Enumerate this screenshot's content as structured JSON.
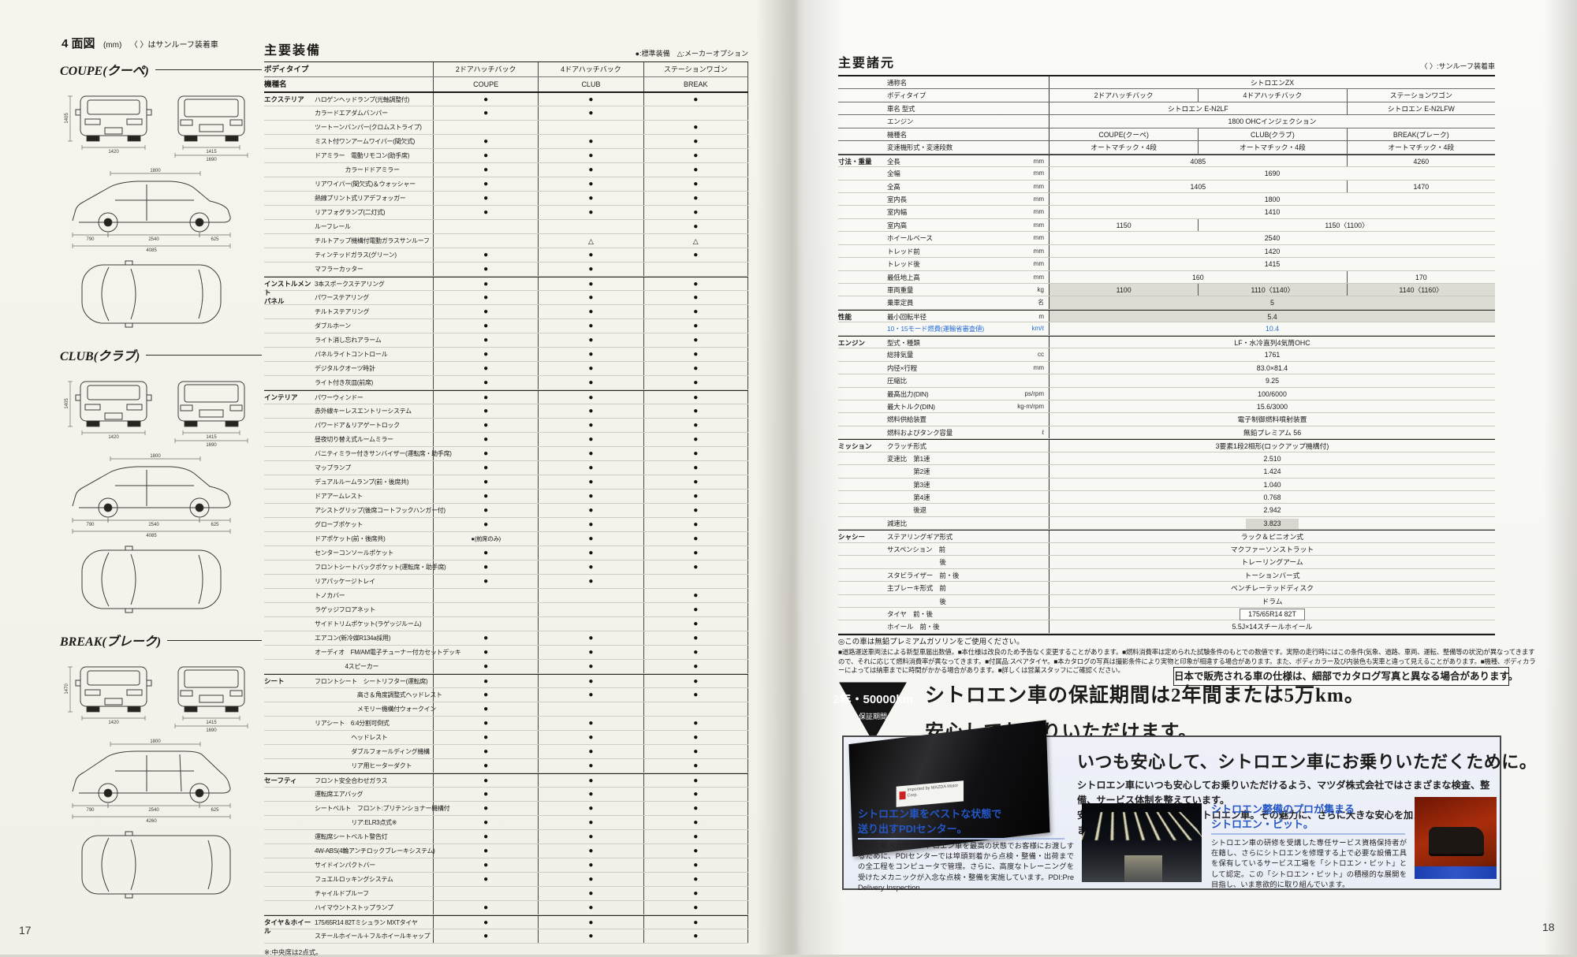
{
  "scan": {
    "page_number_left": "17",
    "page_number_right": "18"
  },
  "page_left": {
    "header": {
      "title": "4 面図",
      "unit_note": "(mm)",
      "sunroof_note": "〈 〉はサンルーフ装着車"
    },
    "diagrams": [
      {
        "name": "COUPE(クーペ)",
        "type": "hatch",
        "dims": {
          "height": "1405",
          "track_f": "1420",
          "track_r": "1415",
          "width": "1690",
          "cabin": "1800",
          "front_oh": "790",
          "wheelbase": "2540",
          "rear_oh": "625",
          "length": "4085"
        }
      },
      {
        "name": "CLUB(クラブ)",
        "type": "hatch",
        "dims": {
          "height": "1405",
          "track_f": "1420",
          "track_r": "1415",
          "width": "1690",
          "cabin": "1800",
          "front_oh": "790",
          "wheelbase": "2540",
          "rear_oh": "625",
          "length": "4085"
        }
      },
      {
        "name": "BREAK(ブレーク)",
        "type": "wagon",
        "dims": {
          "height": "1470",
          "track_f": "1420",
          "track_r": "1415",
          "width": "1690",
          "cabin": "1800",
          "front_oh": "790",
          "wheelbase": "2540",
          "rear_oh": "625",
          "length": "4260"
        }
      }
    ],
    "equipment": {
      "title": "主要装備",
      "legend": "●:標準装備　△:メーカーオプション",
      "body_type_label": "ボディタイプ",
      "model_label": "機種名",
      "body_types": [
        "2ドアハッチバック",
        "4ドアハッチバック",
        "ステーションワゴン"
      ],
      "models": [
        "COUPE",
        "CLUB",
        "BREAK"
      ],
      "rows": [
        {
          "g": true,
          "c": "エクステリア",
          "i": "ハロゲンヘッドランプ(光軸調整付)",
          "v": [
            "●",
            "●",
            "●"
          ]
        },
        {
          "i": "カラードエアダムバンパー",
          "v": [
            "●",
            "●",
            ""
          ]
        },
        {
          "i": "ツートーンバンパー(クロムストライプ)",
          "v": [
            "",
            "",
            "●"
          ]
        },
        {
          "i": "ミスト付ワンアームワイパー(間欠式)",
          "v": [
            "●",
            "●",
            "●"
          ]
        },
        {
          "i": "ドアミラー　電動リモコン(助手席)",
          "v": [
            "●",
            "●",
            "●"
          ]
        },
        {
          "i": "　　　　　カラードドアミラー",
          "v": [
            "●",
            "●",
            "●"
          ]
        },
        {
          "i": "リアワイパー(間欠式)＆ウォッシャー",
          "v": [
            "●",
            "●",
            "●"
          ]
        },
        {
          "i": "熱線プリント式リアデフォッガー",
          "v": [
            "●",
            "●",
            "●"
          ]
        },
        {
          "i": "リアフォグランプ(二灯式)",
          "v": [
            "●",
            "●",
            "●"
          ]
        },
        {
          "i": "ルーフレール",
          "v": [
            "",
            "",
            "●"
          ]
        },
        {
          "i": "チルトアップ機構付電動ガラスサンルーフ",
          "v": [
            "",
            "△",
            "△"
          ]
        },
        {
          "i": "ティンテッドガラス(グリーン)",
          "v": [
            "●",
            "●",
            "●"
          ]
        },
        {
          "i": "マフラーカッター",
          "v": [
            "●",
            "●",
            ""
          ]
        },
        {
          "g": true,
          "c": "インストルメント\nパネル",
          "i": "3本スポークステアリング",
          "v": [
            "●",
            "●",
            "●"
          ]
        },
        {
          "i": "パワーステアリング",
          "v": [
            "●",
            "●",
            "●"
          ]
        },
        {
          "i": "チルトステアリング",
          "v": [
            "●",
            "●",
            "●"
          ]
        },
        {
          "i": "ダブルホーン",
          "v": [
            "●",
            "●",
            "●"
          ]
        },
        {
          "i": "ライト消し忘れアラーム",
          "v": [
            "●",
            "●",
            "●"
          ]
        },
        {
          "i": "パネルライトコントロール",
          "v": [
            "●",
            "●",
            "●"
          ]
        },
        {
          "i": "デジタルクオーツ時計",
          "v": [
            "●",
            "●",
            "●"
          ]
        },
        {
          "i": "ライト付き灰皿(前席)",
          "v": [
            "●",
            "●",
            "●"
          ]
        },
        {
          "g": true,
          "c": "インテリア",
          "i": "パワーウィンドー",
          "v": [
            "●",
            "●",
            "●"
          ]
        },
        {
          "i": "赤外線キーレスエントリーシステム",
          "v": [
            "●",
            "●",
            "●"
          ]
        },
        {
          "i": "パワードア＆リアゲートロック",
          "v": [
            "●",
            "●",
            "●"
          ]
        },
        {
          "i": "昼夜切り替え式ルームミラー",
          "v": [
            "●",
            "●",
            "●"
          ]
        },
        {
          "i": "バニティミラー付きサンバイザー(運転席・助手席)",
          "v": [
            "●",
            "●",
            "●"
          ]
        },
        {
          "i": "マップランプ",
          "v": [
            "●",
            "●",
            "●"
          ]
        },
        {
          "i": "デュアルルームランプ(前・後席共)",
          "v": [
            "●",
            "●",
            "●"
          ]
        },
        {
          "i": "ドアアームレスト",
          "v": [
            "●",
            "●",
            "●"
          ]
        },
        {
          "i": "アシストグリップ(後席コートフックハンガー付)",
          "v": [
            "●",
            "●",
            "●"
          ]
        },
        {
          "i": "グローブポケット",
          "v": [
            "●",
            "●",
            "●"
          ]
        },
        {
          "i": "ドアポケット(前・後席共)",
          "v": [
            "●(前席のみ)",
            "●",
            "●"
          ]
        },
        {
          "i": "センターコンソールポケット",
          "v": [
            "●",
            "●",
            "●"
          ]
        },
        {
          "i": "フロントシートバックポケット(運転席・助手席)",
          "v": [
            "●",
            "●",
            "●"
          ]
        },
        {
          "i": "リアパッケージトレイ",
          "v": [
            "●",
            "●",
            ""
          ]
        },
        {
          "i": "トノカバー",
          "v": [
            "",
            "",
            "●"
          ]
        },
        {
          "i": "ラゲッジフロアネット",
          "v": [
            "",
            "",
            "●"
          ]
        },
        {
          "i": "サイドトリムポケット(ラゲッジルーム)",
          "v": [
            "",
            "",
            "●"
          ]
        },
        {
          "i": "エアコン(新冷媒R134a採用)",
          "v": [
            "●",
            "●",
            "●"
          ]
        },
        {
          "i": "オーディオ　FM/AM電子チューナー付カセットデッキ",
          "v": [
            "●",
            "●",
            "●"
          ]
        },
        {
          "i": "　　　　　4スピーカー",
          "v": [
            "●",
            "●",
            "●"
          ]
        },
        {
          "g": true,
          "c": "シート",
          "i": "フロントシート　シートリフター(運転席)",
          "v": [
            "●",
            "●",
            "●"
          ]
        },
        {
          "i": "　　　　　　　高さ＆角度調整式ヘッドレスト",
          "v": [
            "●",
            "●",
            "●"
          ]
        },
        {
          "i": "　　　　　　　メモリー機構付ウォークイン",
          "v": [
            "●",
            "",
            ""
          ]
        },
        {
          "i": "リアシート　6:4分割可倒式",
          "v": [
            "●",
            "●",
            "●"
          ]
        },
        {
          "i": "　　　　　　ヘッドレスト",
          "v": [
            "●",
            "●",
            "●"
          ]
        },
        {
          "i": "　　　　　　ダブルフォールディング機構",
          "v": [
            "●",
            "●",
            "●"
          ]
        },
        {
          "i": "　　　　　　リア用ヒーターダクト",
          "v": [
            "●",
            "●",
            "●"
          ]
        },
        {
          "g": true,
          "c": "セーフティ",
          "i": "フロント安全合わせガラス",
          "v": [
            "●",
            "●",
            "●"
          ]
        },
        {
          "i": "運転席エアバッグ",
          "v": [
            "●",
            "●",
            "●"
          ]
        },
        {
          "i": "シートベルト　フロント:プリテンショナー機構付",
          "v": [
            "●",
            "●",
            "●"
          ]
        },
        {
          "i": "　　　　　　リア:ELR3点式※",
          "v": [
            "●",
            "●",
            "●"
          ]
        },
        {
          "i": "運転席シートベルト警告灯",
          "v": [
            "●",
            "●",
            "●"
          ]
        },
        {
          "i": "4W-ABS(4輪アンチロックブレーキシステム)",
          "v": [
            "●",
            "●",
            "●"
          ]
        },
        {
          "i": "サイドインパクトバー",
          "v": [
            "●",
            "●",
            "●"
          ]
        },
        {
          "i": "フュエルロッキングシステム",
          "v": [
            "●",
            "●",
            "●"
          ]
        },
        {
          "i": "チャイルドプルーフ",
          "v": [
            "",
            "●",
            "●"
          ]
        },
        {
          "i": "ハイマウントストップランプ",
          "v": [
            "●",
            "●",
            "●"
          ]
        },
        {
          "g": true,
          "c": "タイヤ＆ホイール",
          "i": "175/65R14 82Tミシュラン MXTタイヤ",
          "v": [
            "●",
            "●",
            "●"
          ]
        },
        {
          "i": "スチールホイール＋フルホイールキャップ",
          "v": [
            "●",
            "●",
            "●"
          ]
        }
      ],
      "footnote": "※:中央席は2点式。"
    }
  },
  "page_right": {
    "spec": {
      "title": "主要諸元",
      "legend": "〈 〉:サンルーフ装着車",
      "rows": [
        {
          "hd": true,
          "l": "通称名",
          "s": "a",
          "v": [
            "シトロエンZX"
          ]
        },
        {
          "hd": true,
          "l": "ボディタイプ",
          "s": "t",
          "v": [
            "2ドアハッチバック",
            "4ドアハッチバック",
            "ステーションワゴン"
          ]
        },
        {
          "hd": true,
          "l": "車名 型式",
          "s": "to",
          "v": [
            "シトロエン E-N2LF",
            "シトロエン E-N2LFW"
          ]
        },
        {
          "hd": true,
          "l": "エンジン",
          "s": "a",
          "v": [
            "1800 OHCインジェクション"
          ]
        },
        {
          "hd": true,
          "l": "機種名",
          "s": "t",
          "v": [
            "COUPE(クーペ)",
            "CLUB(クラブ)",
            "BREAK(ブレーク)"
          ]
        },
        {
          "hd": true,
          "l": "変速機形式・変速段数",
          "s": "t",
          "v": [
            "オートマチック・4段",
            "オートマチック・4段",
            "オートマチック・4段"
          ]
        },
        {
          "g": true,
          "c": "寸法・重量",
          "l": "全長",
          "u": "mm",
          "s": "to",
          "v": [
            "4085",
            "4260"
          ]
        },
        {
          "l": "全幅",
          "u": "mm",
          "s": "a",
          "v": [
            "1690"
          ]
        },
        {
          "l": "全高",
          "u": "mm",
          "s": "to",
          "v": [
            "1405",
            "1470"
          ]
        },
        {
          "l": "室内長",
          "u": "mm",
          "s": "a",
          "v": [
            "1800"
          ]
        },
        {
          "l": "室内幅",
          "u": "mm",
          "s": "a",
          "v": [
            "1410"
          ]
        },
        {
          "l": "室内高",
          "u": "mm",
          "s": "ot",
          "v": [
            "1150",
            "1150〈1100〉"
          ]
        },
        {
          "l": "ホイールベース",
          "u": "mm",
          "s": "a",
          "v": [
            "2540"
          ]
        },
        {
          "l": "トレッド前",
          "u": "mm",
          "s": "a",
          "v": [
            "1420"
          ]
        },
        {
          "l": "トレッド後",
          "u": "mm",
          "s": "a",
          "v": [
            "1415"
          ]
        },
        {
          "l": "最低地上高",
          "u": "mm",
          "s": "to",
          "v": [
            "160",
            "170"
          ]
        },
        {
          "l": "車両重量",
          "u": "kg",
          "s": "t",
          "v": [
            "1100",
            "1110〈1140〉",
            "1140〈1160〉"
          ],
          "hl": true
        },
        {
          "l": "乗車定員",
          "u": "名",
          "s": "a",
          "v": [
            "5"
          ],
          "hl": true
        },
        {
          "g": true,
          "c": "性能",
          "l": "最小回転半径",
          "u": "m",
          "s": "a",
          "v": [
            "5.4"
          ],
          "hl": true
        },
        {
          "l": "10・15モード燃費(運輸省審査値)",
          "u": "km/ℓ",
          "s": "a",
          "v": [
            "10.4"
          ],
          "blue": true
        },
        {
          "g": true,
          "c": "エンジン",
          "l": "型式・種類",
          "s": "a",
          "v": [
            "LF・水冷直列4気筒OHC"
          ]
        },
        {
          "l": "総排気量",
          "u": "cc",
          "s": "a",
          "v": [
            "1761"
          ]
        },
        {
          "l": "内径×行程",
          "u": "mm",
          "s": "a",
          "v": [
            "83.0×81.4"
          ]
        },
        {
          "l": "圧縮比",
          "s": "a",
          "v": [
            "9.25"
          ]
        },
        {
          "l": "最高出力(DIN)",
          "u": "ps/rpm",
          "s": "a",
          "v": [
            "100/6000"
          ]
        },
        {
          "l": "最大トルク(DIN)",
          "u": "kg-m/rpm",
          "s": "a",
          "v": [
            "15.6/3000"
          ]
        },
        {
          "l": "燃料供給装置",
          "s": "a",
          "v": [
            "電子制御燃料噴射装置"
          ]
        },
        {
          "l": "燃料およびタンク容量",
          "u": "ℓ",
          "s": "a",
          "v": [
            "無鉛プレミアム 56"
          ]
        },
        {
          "g": true,
          "c": "ミッション",
          "l": "クラッチ形式",
          "s": "a",
          "v": [
            "3要素1段2相形(ロックアップ機構付)"
          ]
        },
        {
          "l": "変速比　第1速",
          "s": "a",
          "v": [
            "2.510"
          ]
        },
        {
          "l": "　　　　第2速",
          "s": "a",
          "v": [
            "1.424"
          ]
        },
        {
          "l": "　　　　第3速",
          "s": "a",
          "v": [
            "1.040"
          ]
        },
        {
          "l": "　　　　第4速",
          "s": "a",
          "v": [
            "0.768"
          ]
        },
        {
          "l": "　　　　後退",
          "s": "a",
          "v": [
            "2.942"
          ]
        },
        {
          "l": "減速比",
          "s": "a",
          "v": [
            "3.823"
          ],
          "grey": true
        },
        {
          "g": true,
          "c": "シャシー",
          "l": "ステアリングギア形式",
          "s": "a",
          "v": [
            "ラック＆ピニオン式"
          ]
        },
        {
          "l": "サスペンション　前",
          "s": "a",
          "v": [
            "マクファーソンストラット"
          ]
        },
        {
          "l": "　　　　　　　　後",
          "s": "a",
          "v": [
            "トレーリングアーム"
          ]
        },
        {
          "l": "スタビライザー　前・後",
          "s": "a",
          "v": [
            "トーションバー式"
          ]
        },
        {
          "l": "主ブレーキ形式　前",
          "s": "a",
          "v": [
            "ベンチレーテッドディスク"
          ]
        },
        {
          "l": "　　　　　　　　後",
          "s": "a",
          "v": [
            "ドラム"
          ]
        },
        {
          "l": "タイヤ　前・後",
          "s": "a",
          "v": [
            "175/65R14 82T"
          ],
          "box": true
        },
        {
          "l": "ホイール　前・後",
          "s": "a",
          "v": [
            "5.5J×14スチールホイール"
          ]
        }
      ]
    },
    "notes": {
      "fuel": "◎この車は無鉛プレミアムガソリンをご使用ください。",
      "fine_print": "■道路運送車両法による新型車届出数値。■本仕様は改良のため予告なく変更することがあります。■燃料消費率は定められた試験条件のもとでの数値です。実際の走行時にはこの条件(気象、道路、車両、運転、整備等の状況)が異なってきますので、それに応じて燃料消費率が異なってきます。■付属品:スペアタイヤ。■本カタログの写真は撮影条件により実物と印象が相違する場合があります。また、ボディカラー及び内装色も実車と違って見えることがあります。■機種、ボディカラーによっては納車までに時間がかかる場合があります。■詳しくは営業スタッフにご確認ください。",
      "box": "日本で販売される車の仕様は、細部でカタログ写真と異なる場合があります。"
    },
    "warranty": {
      "badge_line1": "2年・50000km",
      "badge_line2": "保証期間",
      "line1": "シトロエン車の保証期間は2年間または5万km。",
      "line2": "安心してお乗りいただけます。"
    },
    "service_box": {
      "heading": "いつも安心して、シトロエン車にお乗りいただくために。",
      "body1": "シトロエン車にいつも安心してお乗りいただけるよう、マツダ株式会社ではさまざまな検査、整備、サービス体制を整えています。",
      "body2": "安全性を高度に磨き上げたシトロエン車。その魅力に、さらに大きな安心を加えてお届けいたします。",
      "plate": "Imported by MAZDA Motor Corp.",
      "pdi": {
        "head1": "シトロエン車をベストな状態で",
        "head2": "送り出すPDIセンター。",
        "body": "日本に輸入されたシトロエン車を最高の状態でお客様にお渡しするために、PDIセンターでは埠頭到着から点検・整備・出荷までの全工程をコンピュータで管理。さらに、高度なトレーニングを受けたメカニックが入念な点検・整備を実施しています。PDI:Pre Delivery Inspection"
      },
      "pit": {
        "head1": "シトロエン整備のプロが集まる",
        "head2": "シトロエン・ピット。",
        "body": "シトロエン車の研修を受講した専任サービス資格保持者が在籍し、さらにシトロエンを修理する上で必要な設備工具を保有しているサービス工場を「シトロエン・ピット」として認定。この「シトロエン・ピット」の積極的な展開を目指し、いま意欲的に取り組んでいます。"
      }
    }
  }
}
